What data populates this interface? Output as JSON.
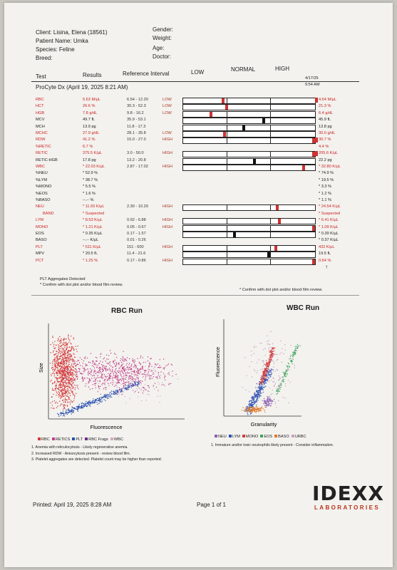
{
  "header": {
    "client": "Client: Lisina, Elena (18561)",
    "patient": "Patient Name: Umka",
    "species": "Species: Feline",
    "breed": "Breed:",
    "gender": "Gender:",
    "weight": "Weight:",
    "age": "Age:",
    "doctor": "Doctor:"
  },
  "columns": {
    "test": "Test",
    "results": "Results",
    "reference": "Reference Interval",
    "low": "LOW",
    "normal": "NORMAL",
    "high": "HIGH"
  },
  "run": {
    "title": "ProCyte Dx (April 19, 2025 8:21 AM)",
    "date": "4/17/25",
    "time": "9:54 AM"
  },
  "rows": [
    {
      "test": "RBC",
      "result": "5.63 M/µL",
      "ref": "6.54 - 12.20",
      "flag": "LOW",
      "color": "red",
      "marker": 0.29,
      "marker_color": "#c33",
      "prior": "4.64 M/µL",
      "prior_flag": true
    },
    {
      "test": "HCT",
      "result": "26.6 %",
      "ref": "30.3 - 52.3",
      "flag": "LOW",
      "color": "red",
      "marker": 0.32,
      "marker_color": "#c33",
      "prior": "21.3 %",
      "prior_flag": false
    },
    {
      "test": "HGB",
      "result": "7.8 g/dL",
      "ref": "9.8 - 16.2",
      "flag": "LOW",
      "color": "red",
      "marker": 0.2,
      "marker_color": "#c33",
      "prior": "6.4 g/dL",
      "prior_flag": false
    },
    {
      "test": "MCV",
      "result": "49.7 fL",
      "ref": "35.9 - 53.1",
      "flag": "",
      "color": "dark",
      "marker": 0.6,
      "marker_color": "#111",
      "prior": "45.9 fL",
      "prior_flag": false
    },
    {
      "test": "MCH",
      "result": "13.9 pg",
      "ref": "11.8 - 17.3",
      "flag": "",
      "color": "dark",
      "marker": 0.45,
      "marker_color": "#111",
      "prior": "13.8 pg",
      "prior_flag": false
    },
    {
      "test": "MCHC",
      "result": "27.9 g/dL",
      "ref": "28.1 - 35.8",
      "flag": "LOW",
      "color": "red",
      "marker": 0.3,
      "marker_color": "#c33",
      "prior": "30.0 g/dL",
      "prior_flag": false
    },
    {
      "test": "RDW",
      "result": "41.2 %",
      "ref": "15.0 - 27.0",
      "flag": "HIGH",
      "color": "red",
      "marker": 0.985,
      "marker_color": "#c33",
      "prior": "30.7 %",
      "prior_flag": true
    },
    {
      "test": "%RETIC",
      "result": "6.7 %",
      "ref": "",
      "flag": "",
      "color": "red",
      "marker": null,
      "marker_color": "",
      "prior": "4.4 %",
      "prior_flag": false
    },
    {
      "test": "RETIC",
      "result": "375.5 K/µL",
      "ref": "3.0 - 50.0",
      "flag": "HIGH",
      "color": "red",
      "marker": 0.985,
      "marker_color": "#c33",
      "prior": "205.6 K/µL",
      "prior_flag": true
    },
    {
      "test": "RETIC-HGB",
      "result": "17.8 pg",
      "ref": "13.2 - 20.8",
      "flag": "",
      "color": "dark",
      "marker": 0.53,
      "marker_color": "#111",
      "prior": "22.2 pg",
      "prior_flag": false
    },
    {
      "test": "WBC",
      "result": "* 22.03 K/µL",
      "ref": "2.87 - 17.02",
      "flag": "HIGH",
      "color": "red",
      "marker": 0.9,
      "marker_color": "#c33",
      "prior": "* 32.80 K/µL",
      "prior_flag": false
    },
    {
      "test": "%NEU",
      "result": "* 52.9 %",
      "ref": "",
      "flag": "",
      "color": "dark",
      "marker": null,
      "marker_color": "",
      "prior": "* 74.9 %",
      "prior_flag": false
    },
    {
      "test": "%LYM",
      "result": "* 38.7 %",
      "ref": "",
      "flag": "",
      "color": "dark",
      "marker": null,
      "marker_color": "",
      "prior": "* 19.5 %",
      "prior_flag": false
    },
    {
      "test": "%MONO",
      "result": "* 5.5 %",
      "ref": "",
      "flag": "",
      "color": "dark",
      "marker": null,
      "marker_color": "",
      "prior": "* 3.3 %",
      "prior_flag": false
    },
    {
      "test": "%EOS",
      "result": "* 1.6 %",
      "ref": "",
      "flag": "",
      "color": "dark",
      "marker": null,
      "marker_color": "",
      "prior": "* 1.2 %",
      "prior_flag": false
    },
    {
      "test": "%BASO",
      "result": "--.-- %",
      "ref": "",
      "flag": "",
      "color": "dark",
      "marker": null,
      "marker_color": "",
      "prior": "* 1.1 %",
      "prior_flag": false
    },
    {
      "test": "NEU",
      "result": "* 11.65 K/µL",
      "ref": "2.30 - 10.29",
      "flag": "HIGH",
      "color": "red",
      "marker": 0.7,
      "marker_color": "#c33",
      "prior": "* 24.54 K/µL",
      "prior_flag": false
    },
    {
      "test": "BAND",
      "result": "* Suspected",
      "ref": "",
      "flag": "",
      "color": "red",
      "marker": null,
      "marker_color": "",
      "prior": "* Suspected",
      "prior_flag": false
    },
    {
      "test": "LYM",
      "result": "* 8.53 K/µL",
      "ref": "0.92 - 6.88",
      "flag": "HIGH",
      "color": "red",
      "marker": 0.72,
      "marker_color": "#c33",
      "prior": "* 6.41 K/µL",
      "prior_flag": false
    },
    {
      "test": "MONO",
      "result": "* 1.21 K/µL",
      "ref": "0.05 - 0.67",
      "flag": "HIGH",
      "color": "red",
      "marker": 0.985,
      "marker_color": "#c33",
      "prior": "* 1.09 K/µL",
      "prior_flag": false
    },
    {
      "test": "EOS",
      "result": "* 0.35 K/µL",
      "ref": "0.17 - 1.57",
      "flag": "",
      "color": "dark",
      "marker": 0.38,
      "marker_color": "#111",
      "prior": "* 0.39 K/µL",
      "prior_flag": false
    },
    {
      "test": "BASO",
      "result": "--.-- K/µL",
      "ref": "0.01 - 0.26",
      "flag": "",
      "color": "dark",
      "marker": null,
      "marker_color": "",
      "prior": "* 0.37 K/µL",
      "prior_flag": false
    },
    {
      "test": "PLT",
      "result": "* 611 K/µL",
      "ref": "151 - 600",
      "flag": "HIGH",
      "color": "red",
      "marker": 0.69,
      "marker_color": "#c33",
      "prior": "432 K/µL",
      "prior_flag": false
    },
    {
      "test": "MPV",
      "result": "* 20.5 fL",
      "ref": "11.4 - 21.6",
      "flag": "",
      "color": "dark",
      "marker": 0.64,
      "marker_color": "#111",
      "prior": "19.5 fL",
      "prior_flag": false
    },
    {
      "test": "PCT",
      "result": "* 1.25 %",
      "ref": "0.17 - 0.86",
      "flag": "HIGH",
      "color": "red",
      "marker": 0.985,
      "marker_color": "#c33",
      "prior": "0.64 %",
      "prior_flag": false
    }
  ],
  "notes": {
    "plt": "PLT Aggregates Detected",
    "confirm": "* Confirm with dot plot and/or blood film review.",
    "confirm_prior": "* Confirm with dot plot and/or blood film review."
  },
  "plots": {
    "rbc_title": "RBC Run",
    "rbc_y": "Size",
    "rbc_x": "Fluorescence",
    "rbc_legend": [
      {
        "label": "RBC",
        "color": "#d33a3a"
      },
      {
        "label": "RETICS",
        "color": "#c2418a"
      },
      {
        "label": "PLT",
        "color": "#2a4fb0"
      },
      {
        "label": "RBC Frags",
        "color": "#6b2a8a"
      },
      {
        "label": "WBC",
        "color": "#d8a6c8"
      }
    ],
    "wbc_title": "WBC Run",
    "wbc_y": "Fluorescence",
    "wbc_x": "Granularity",
    "wbc_legend": [
      {
        "label": "NEU",
        "color": "#8a5fb0"
      },
      {
        "label": "LYM",
        "color": "#2a4fb0"
      },
      {
        "label": "MONO",
        "color": "#d33a3a"
      },
      {
        "label": "EOS",
        "color": "#3aa35a"
      },
      {
        "label": "BASO",
        "color": "#e07a2a"
      },
      {
        "label": "URBC",
        "color": "#c9a0c0"
      }
    ]
  },
  "interpretation": [
    "1. Anemia with reticulocytosis - Likely regenerative anemia.",
    "2. Increased RDW - Anisocytosis present - review blood film.",
    "3. Platelet aggregates are detected. Platelet count may be higher than reported."
  ],
  "wbc_note": "1. Immature and/or toxic neutrophils likely present - Consider inflammation.",
  "footer": {
    "printed": "Printed: April 19, 2025 8:28 AM",
    "page": "Page 1 of 1",
    "logo": "IDEXX",
    "logo_sub": "LABORATORIES"
  }
}
